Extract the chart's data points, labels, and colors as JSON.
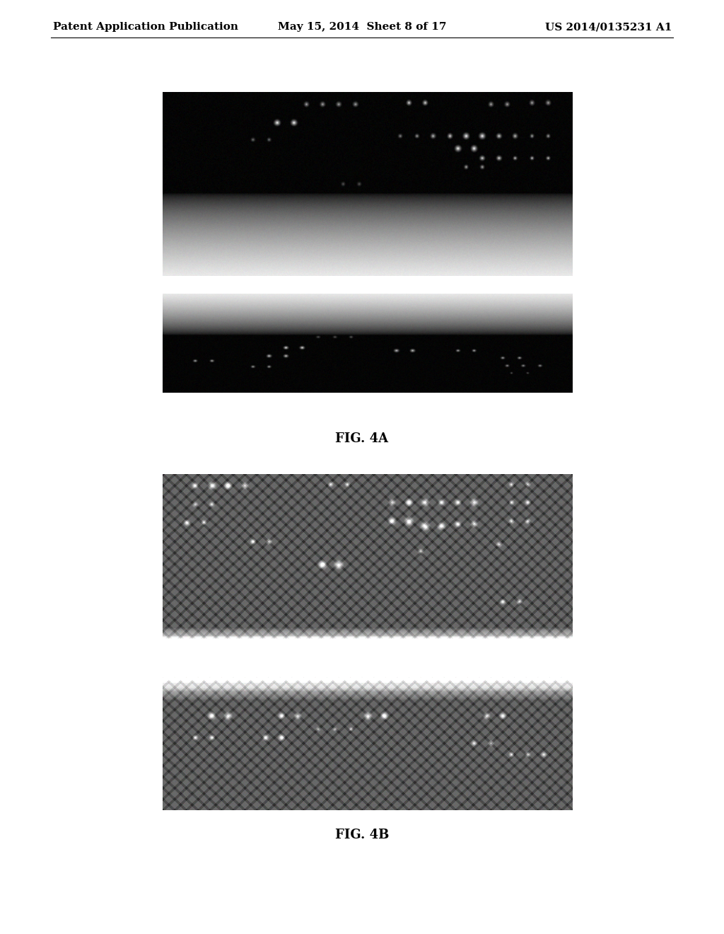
{
  "page_title_left": "Patent Application Publication",
  "page_title_center": "May 15, 2014  Sheet 8 of 17",
  "page_title_right": "US 2014/0135231 A1",
  "fig4a_label": "FIG. 4A",
  "fig4b_label": "FIG. 4B",
  "bg_color": "#ffffff",
  "header_font_size": 11,
  "fig_label_font_size": 13
}
